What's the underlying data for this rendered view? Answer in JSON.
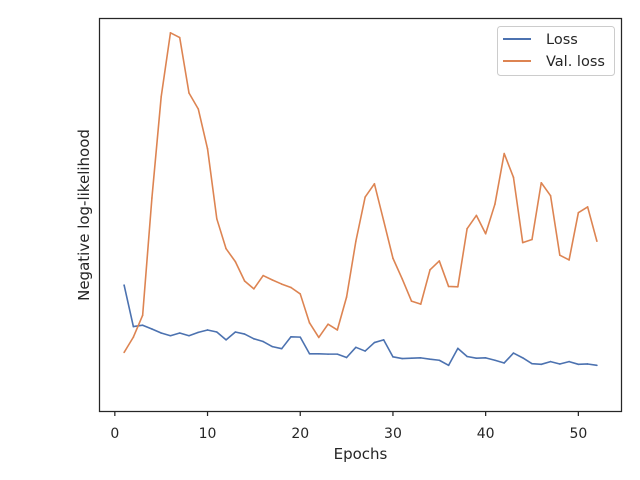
{
  "chart_data": {
    "type": "line",
    "xlabel": "Epochs",
    "ylabel": "Negative log-likelihood",
    "x_ticks": [
      0,
      10,
      20,
      30,
      40,
      50
    ],
    "y_ticks_visible": false,
    "ylim": [
      0.0,
      10.0
    ],
    "xlim": [
      -1.6,
      54.6
    ],
    "grid": false,
    "legend_position": "upper right",
    "x": [
      1,
      2,
      3,
      4,
      5,
      6,
      7,
      8,
      9,
      10,
      11,
      12,
      13,
      14,
      15,
      16,
      17,
      18,
      19,
      20,
      21,
      22,
      23,
      24,
      25,
      26,
      27,
      28,
      29,
      30,
      31,
      32,
      33,
      34,
      35,
      36,
      37,
      38,
      39,
      40,
      41,
      42,
      43,
      44,
      45,
      46,
      47,
      48,
      49,
      50,
      51,
      52
    ],
    "series": [
      {
        "name": "Loss",
        "color": "#4c72b0",
        "values": [
          2.85,
          1.63,
          1.67,
          1.56,
          1.44,
          1.36,
          1.44,
          1.36,
          1.46,
          1.53,
          1.47,
          1.24,
          1.47,
          1.41,
          1.27,
          1.19,
          1.04,
          0.98,
          1.33,
          1.32,
          0.83,
          0.83,
          0.82,
          0.82,
          0.72,
          1.02,
          0.91,
          1.16,
          1.24,
          0.74,
          0.69,
          0.7,
          0.71,
          0.67,
          0.64,
          0.49,
          0.99,
          0.75,
          0.7,
          0.71,
          0.64,
          0.56,
          0.85,
          0.71,
          0.54,
          0.52,
          0.6,
          0.53,
          0.6,
          0.52,
          0.53,
          0.49
        ]
      },
      {
        "name": "Val. loss",
        "color": "#dd8452",
        "values": [
          0.87,
          1.32,
          1.96,
          5.41,
          8.39,
          10.27,
          10.13,
          8.5,
          8.03,
          6.86,
          4.8,
          3.92,
          3.54,
          2.97,
          2.74,
          3.13,
          3.0,
          2.88,
          2.78,
          2.59,
          1.74,
          1.31,
          1.7,
          1.53,
          2.5,
          4.14,
          5.44,
          5.83,
          4.74,
          3.64,
          3.03,
          2.38,
          2.29,
          3.3,
          3.56,
          2.81,
          2.8,
          4.51,
          4.9,
          4.36,
          5.23,
          6.72,
          6.02,
          4.1,
          4.19,
          5.86,
          5.48,
          3.73,
          3.59,
          4.98,
          5.15,
          4.14
        ]
      }
    ]
  }
}
